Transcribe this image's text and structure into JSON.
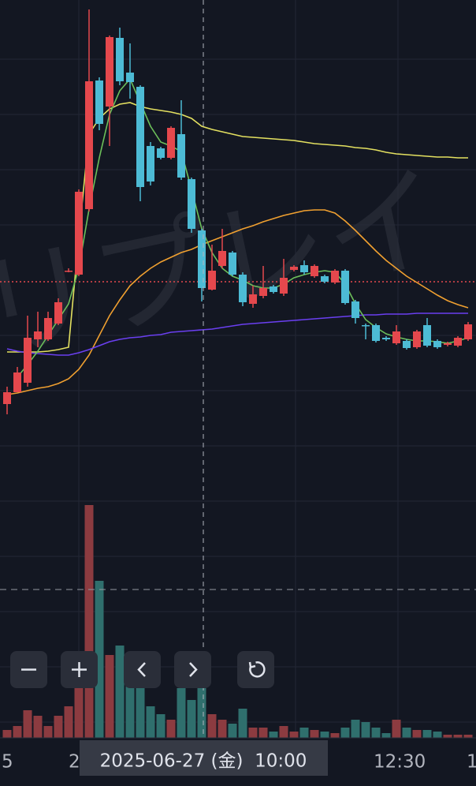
{
  "chart_data": {
    "type": "candlestick",
    "watermark": "リプレイ",
    "x_labels": [
      "5",
      "2",
      "12:30",
      "1"
    ],
    "crosshair_label": "2025-06-27 (金)  10:00",
    "up_color": "#e5484d",
    "down_color": "#4dbbd5",
    "volume_up_color": "#8c3b40",
    "volume_down_color": "#2f6f6d",
    "ylim": [
      65,
      1000
    ],
    "y2lim": [
      0,
      935
    ],
    "price_line": 643,
    "open": [
      488,
      503,
      515,
      570,
      570,
      590,
      656,
      652,
      735,
      898,
      865,
      952,
      908,
      890,
      815,
      812,
      800,
      830,
      773,
      708,
      633,
      663,
      680,
      652,
      615,
      625,
      637,
      628,
      658,
      664,
      650,
      650,
      642,
      657,
      618,
      588,
      588,
      572,
      565,
      568,
      560,
      588,
      568,
      563,
      562,
      570
    ],
    "high": [
      510,
      535,
      600,
      605,
      605,
      622,
      660,
      760,
      988,
      902,
      955,
      965,
      945,
      892,
      820,
      814,
      840,
      873,
      775,
      710,
      690,
      710,
      682,
      655,
      638,
      663,
      639,
      672,
      664,
      670,
      665,
      652,
      659,
      659,
      620,
      590,
      590,
      574,
      588,
      570,
      582,
      597,
      570,
      567,
      574,
      592
    ],
    "low": [
      475,
      503,
      510,
      560,
      568,
      588,
      655,
      650,
      732,
      835,
      815,
      892,
      875,
      745,
      765,
      798,
      798,
      772,
      705,
      618,
      632,
      660,
      650,
      612,
      610,
      622,
      628,
      625,
      656,
      652,
      648,
      641,
      640,
      614,
      590,
      570,
      566,
      568,
      563,
      557,
      558,
      560,
      558,
      561,
      560,
      568
    ],
    "close": [
      503,
      528,
      572,
      580,
      597,
      617,
      657,
      757,
      897,
      843,
      953,
      897,
      896,
      763,
      770,
      800,
      838,
      775,
      710,
      635,
      657,
      682,
      652,
      617,
      627,
      635,
      630,
      648,
      662,
      655,
      663,
      643,
      657,
      616,
      597,
      587,
      568,
      570,
      580,
      559,
      580,
      562,
      560,
      565,
      572,
      589
    ],
    "volume": [
      10,
      15,
      35,
      28,
      15,
      28,
      40,
      63,
      295,
      199,
      105,
      117,
      105,
      63,
      40,
      30,
      23,
      63,
      48,
      63,
      30,
      23,
      18,
      37,
      13,
      13,
      8,
      15,
      8,
      13,
      10,
      8,
      6,
      13,
      23,
      20,
      13,
      6,
      23,
      13,
      10,
      10,
      8,
      4,
      4,
      4
    ],
    "series": [
      {
        "color": "#e3e060",
        "values": [
          554,
          554,
          554,
          554,
          555,
          557,
          560,
          700,
          830,
          850,
          862,
          868,
          870,
          865,
          862,
          860,
          858,
          855,
          850,
          840,
          836,
          833,
          830,
          827,
          826,
          825,
          824,
          823,
          822,
          820,
          818,
          817,
          816,
          815,
          813,
          812,
          810,
          807,
          805,
          804,
          803,
          802,
          801,
          801,
          800,
          800
        ]
      },
      {
        "color": "#f0a030",
        "values": [
          500,
          502,
          505,
          508,
          510,
          514,
          520,
          532,
          550,
          575,
          600,
          620,
          638,
          650,
          660,
          668,
          674,
          680,
          684,
          690,
          695,
          700,
          705,
          710,
          714,
          719,
          723,
          727,
          730,
          733,
          734,
          734,
          730,
          720,
          708,
          695,
          682,
          670,
          660,
          650,
          642,
          634,
          626,
          619,
          614,
          610
        ]
      },
      {
        "color": "#6a3ff0",
        "values": [
          558,
          555,
          553,
          552,
          551,
          550,
          550,
          553,
          557,
          562,
          567,
          570,
          572,
          573,
          575,
          576,
          579,
          580,
          581,
          582,
          583,
          585,
          587,
          589,
          590,
          591,
          592,
          593,
          594,
          595,
          596,
          597,
          598,
          599,
          600,
          601,
          601,
          602,
          602,
          602,
          603,
          603,
          603,
          603,
          603,
          603
        ]
      },
      {
        "color": "#6cbf5a",
        "values": [
          null,
          522,
          538,
          555,
          575,
          595,
          615,
          660,
          735,
          800,
          855,
          885,
          900,
          870,
          840,
          820,
          815,
          808,
          760,
          710,
          680,
          660,
          650,
          645,
          638,
          635,
          635,
          640,
          648,
          652,
          655,
          657,
          655,
          640,
          615,
          595,
          585,
          577,
          573,
          570,
          568,
          568,
          567,
          565,
          568,
          572
        ]
      }
    ]
  }
}
